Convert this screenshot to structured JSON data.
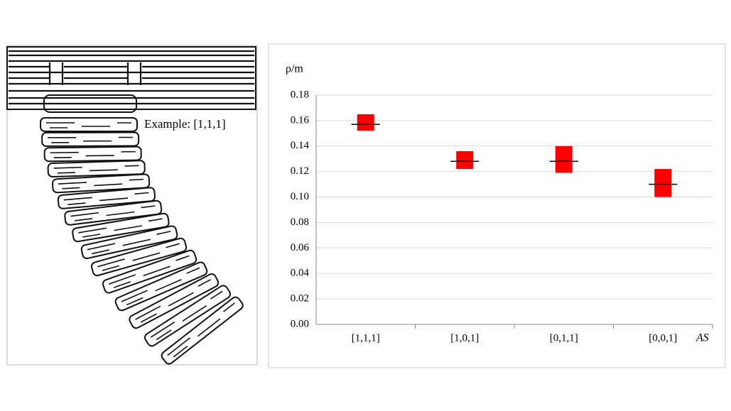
{
  "image_annotation": "Example: [1,1,1]",
  "chart_data": {
    "type": "floating-bar",
    "y_label": "ρ/m",
    "x_label": "AS",
    "categories": [
      "[1,1,1]",
      "[1,0,1]",
      "[0,1,1]",
      "[0,0,1]"
    ],
    "low": [
      0.152,
      0.122,
      0.119,
      0.1
    ],
    "high": [
      0.165,
      0.136,
      0.14,
      0.122
    ],
    "mid": [
      0.157,
      0.128,
      0.128,
      0.11
    ],
    "color": "#ff0000",
    "mid_color": "#000000",
    "ylim": [
      0,
      0.18
    ],
    "yticks": [
      {
        "value": 0,
        "label": "0.00"
      },
      {
        "value": 0.02,
        "label": "0.02"
      },
      {
        "value": 0.04,
        "label": "0.04"
      },
      {
        "value": 0.06,
        "label": "0.06"
      },
      {
        "value": 0.08,
        "label": "0.08"
      },
      {
        "value": 0.1,
        "label": "0.10"
      },
      {
        "value": 0.12,
        "label": "0.12"
      },
      {
        "value": 0.14,
        "label": "0.14"
      },
      {
        "value": 0.16,
        "label": "0.16"
      },
      {
        "value": 0.18,
        "label": "0.18"
      }
    ],
    "grid": true
  }
}
